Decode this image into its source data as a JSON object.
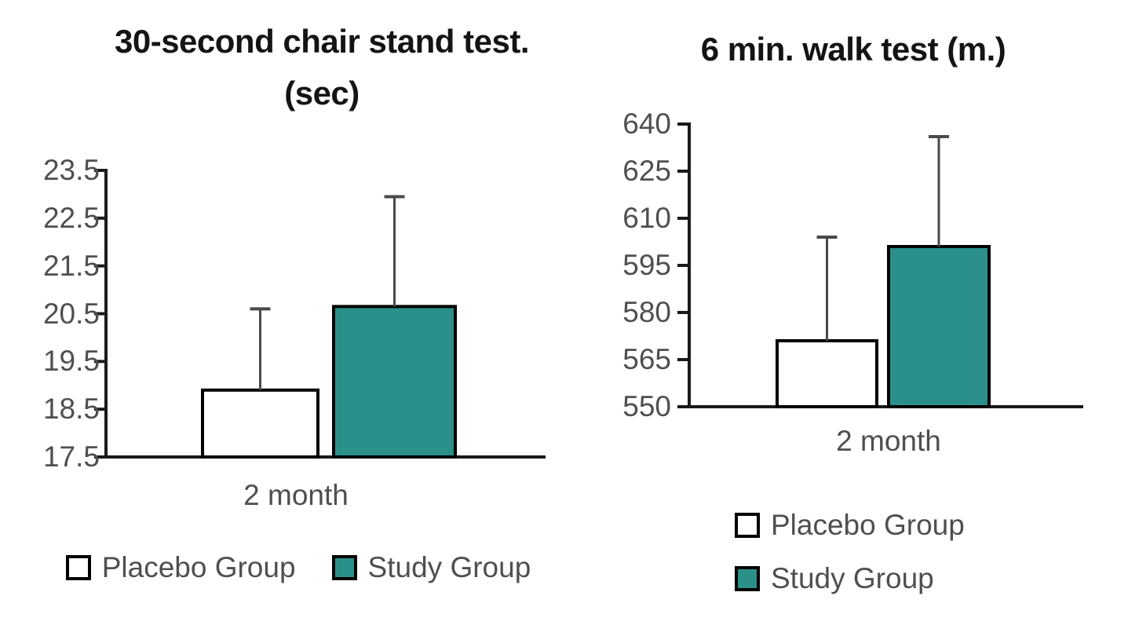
{
  "page": {
    "background": "#ffffff"
  },
  "colors": {
    "study_fill": "#2a9089",
    "placebo_fill": "#ffffff",
    "bar_border": "#000000",
    "error_bar": "#4a4a4a",
    "axis": "#1a1a1a",
    "tick_label": "#4f4f4f",
    "title": "#141414"
  },
  "legend": {
    "placebo_label": "Placebo Group",
    "study_label": "Study Group"
  },
  "chart_data": [
    {
      "type": "bar",
      "title": "30-second chair stand test. (sec)",
      "title_lines": [
        "30-second chair stand test.",
        "(sec)"
      ],
      "categories": [
        "2 month"
      ],
      "series": [
        {
          "name": "Placebo Group",
          "values": [
            18.9
          ],
          "error_plus": [
            1.7
          ],
          "fill": "placebo"
        },
        {
          "name": "Study Group",
          "values": [
            20.65
          ],
          "error_plus": [
            2.3
          ],
          "fill": "study"
        }
      ],
      "ylim": [
        17.5,
        23.5
      ],
      "y_tick_step": 1.0,
      "y_tick_labels": [
        "23.5",
        "22.5",
        "21.5",
        "20.5",
        "19.5",
        "18.5",
        "17.5"
      ],
      "ylabel": "",
      "xlabel": "",
      "grid": false,
      "legend_position": "bottom-horizontal"
    },
    {
      "type": "bar",
      "title": "6 min. walk test (m.)",
      "title_lines": [
        "6 min. walk test (m.)"
      ],
      "categories": [
        "2 month"
      ],
      "series": [
        {
          "name": "Placebo Group",
          "values": [
            571
          ],
          "error_plus": [
            33
          ],
          "fill": "placebo"
        },
        {
          "name": "Study Group",
          "values": [
            601
          ],
          "error_plus": [
            35
          ],
          "fill": "study"
        }
      ],
      "ylim": [
        550,
        640
      ],
      "y_tick_step": 15,
      "y_tick_labels": [
        "640",
        "625",
        "610",
        "595",
        "580",
        "565",
        "550"
      ],
      "ylabel": "",
      "xlabel": "",
      "grid": false,
      "legend_position": "bottom-vertical"
    }
  ]
}
